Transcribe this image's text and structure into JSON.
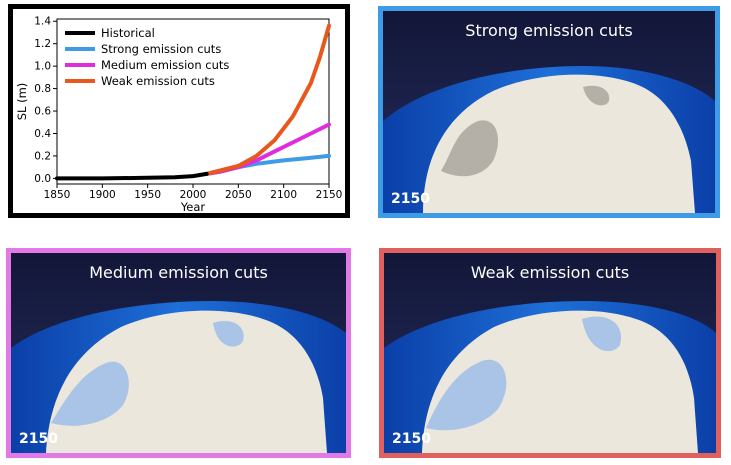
{
  "chart_data": {
    "type": "line",
    "xlabel": "Year",
    "ylabel": "SL (m)",
    "xlim": [
      1850,
      2150
    ],
    "ylim": [
      -0.05,
      1.42
    ],
    "xticks": [
      1850,
      1900,
      1950,
      2000,
      2050,
      2100,
      2150
    ],
    "yticks": [
      0.0,
      0.2,
      0.4,
      0.6,
      0.8,
      1.0,
      1.2,
      1.4
    ],
    "legend_position": "top-left",
    "grid": false,
    "series": [
      {
        "name": "Historical",
        "color": "#000000",
        "x": [
          1850,
          1900,
          1950,
          1980,
          2000,
          2015
        ],
        "y": [
          0.0,
          0.0,
          0.005,
          0.01,
          0.02,
          0.04
        ]
      },
      {
        "name": "Strong emission cuts",
        "color": "#3e9be6",
        "x": [
          2015,
          2030,
          2050,
          2070,
          2100,
          2125,
          2150
        ],
        "y": [
          0.04,
          0.06,
          0.1,
          0.13,
          0.16,
          0.18,
          0.2
        ]
      },
      {
        "name": "Medium emission cuts",
        "color": "#e02ce0",
        "x": [
          2015,
          2030,
          2050,
          2070,
          2090,
          2110,
          2130,
          2150
        ],
        "y": [
          0.04,
          0.06,
          0.1,
          0.16,
          0.24,
          0.32,
          0.4,
          0.48
        ]
      },
      {
        "name": "Weak emission cuts",
        "color": "#e8571b",
        "x": [
          2015,
          2030,
          2050,
          2070,
          2090,
          2110,
          2130,
          2140,
          2150
        ],
        "y": [
          0.04,
          0.07,
          0.11,
          0.2,
          0.34,
          0.55,
          0.85,
          1.08,
          1.36
        ]
      }
    ]
  },
  "panels": [
    {
      "title": "Strong emission cuts",
      "year": "2150",
      "border_color": "#3e9be6"
    },
    {
      "title": "Medium emission cuts",
      "year": "2150",
      "border_color": "#e27ae6"
    },
    {
      "title": "Weak emission cuts",
      "year": "2150",
      "border_color": "#e0605e"
    }
  ]
}
